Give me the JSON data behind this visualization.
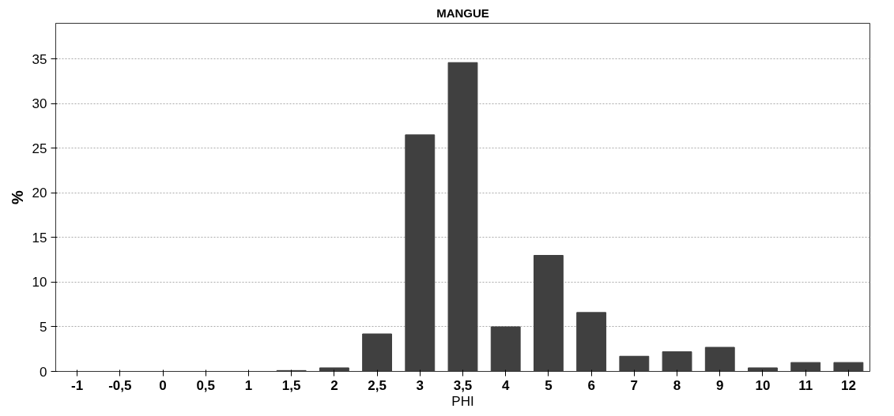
{
  "chart_data": {
    "type": "bar",
    "title": "MANGUE",
    "xlabel": "PHI",
    "ylabel": "%",
    "categories": [
      "-1",
      "-0,5",
      "0",
      "0,5",
      "1",
      "1,5",
      "2",
      "2,5",
      "3",
      "3,5",
      "4",
      "5",
      "6",
      "7",
      "8",
      "9",
      "10",
      "11",
      "12"
    ],
    "values": [
      0,
      0,
      0,
      0,
      0,
      0.1,
      0.4,
      4.2,
      26.5,
      34.6,
      5.0,
      13.0,
      6.6,
      1.7,
      2.2,
      2.7,
      0.4,
      1.0,
      1.0
    ],
    "color": "#404040",
    "ylim": [
      0,
      39
    ],
    "yticks": [
      0,
      5,
      10,
      15,
      20,
      25,
      30,
      35
    ],
    "grid": "y"
  }
}
